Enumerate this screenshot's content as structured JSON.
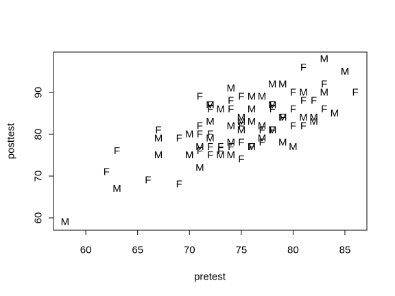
{
  "chart_data": {
    "type": "scatter",
    "x_label": "pretest",
    "y_label": "posttest",
    "xlim": [
      56.88,
      87.12
    ],
    "ylim": [
      57.05,
      99.67
    ],
    "xticks": [
      60,
      65,
      70,
      75,
      80,
      85
    ],
    "yticks": [
      60,
      70,
      80,
      90
    ],
    "grid": false,
    "color": "#000000",
    "x": [
      58,
      62,
      63,
      63,
      66,
      67,
      67,
      67,
      69,
      69,
      70,
      70,
      70,
      71,
      71,
      71,
      71,
      71,
      71,
      72,
      72,
      72,
      72,
      72,
      72,
      72,
      72,
      73,
      73,
      73,
      73,
      74,
      74,
      74,
      74,
      74,
      74,
      74,
      75,
      75,
      75,
      75,
      75,
      75,
      75,
      76,
      76,
      76,
      76,
      76,
      77,
      77,
      77,
      77,
      77,
      78,
      78,
      78,
      78,
      78,
      78,
      79,
      79,
      79,
      79,
      80,
      80,
      80,
      80,
      81,
      81,
      81,
      81,
      81,
      82,
      82,
      82,
      83,
      83,
      83,
      83,
      84,
      85,
      85,
      86
    ],
    "values": [
      59,
      71,
      67,
      76,
      69,
      75,
      79,
      81,
      68,
      79,
      80,
      75,
      75,
      72,
      89,
      82,
      80,
      77,
      76,
      87,
      87,
      86,
      83,
      80,
      79,
      77,
      75,
      86,
      75,
      76,
      77,
      91,
      88,
      86,
      82,
      78,
      75,
      77,
      89,
      84,
      83,
      82,
      81,
      78,
      74,
      89,
      86,
      83,
      77,
      77,
      89,
      82,
      81,
      79,
      78,
      92,
      87,
      87,
      86,
      81,
      81,
      92,
      84,
      84,
      78,
      90,
      86,
      82,
      77,
      96,
      90,
      88,
      84,
      82,
      88,
      84,
      83,
      98,
      92,
      90,
      86,
      85,
      95,
      95,
      90
    ],
    "point_labels": [
      "M",
      "F",
      "M",
      "F",
      "F",
      "M",
      "M",
      "F",
      "F",
      "F",
      "M",
      "M",
      "M",
      "M",
      "F",
      "F",
      "F",
      "M",
      "F",
      "F",
      "M",
      "F",
      "M",
      "F",
      "M",
      "F",
      "F",
      "M",
      "M",
      "F",
      "F",
      "M",
      "F",
      "F",
      "M",
      "M",
      "M",
      "F",
      "F",
      "M",
      "M",
      "F",
      "M",
      "F",
      "F",
      "M",
      "M",
      "M",
      "M",
      "F",
      "M",
      "M",
      "F",
      "M",
      "F",
      "M",
      "F",
      "M",
      "F",
      "F",
      "M",
      "M",
      "F",
      "M",
      "M",
      "F",
      "F",
      "F",
      "M",
      "F",
      "M",
      "F",
      "M",
      "F",
      "F",
      "M",
      "M",
      "M",
      "F",
      "M",
      "F",
      "M",
      "M",
      "M",
      "F"
    ]
  }
}
